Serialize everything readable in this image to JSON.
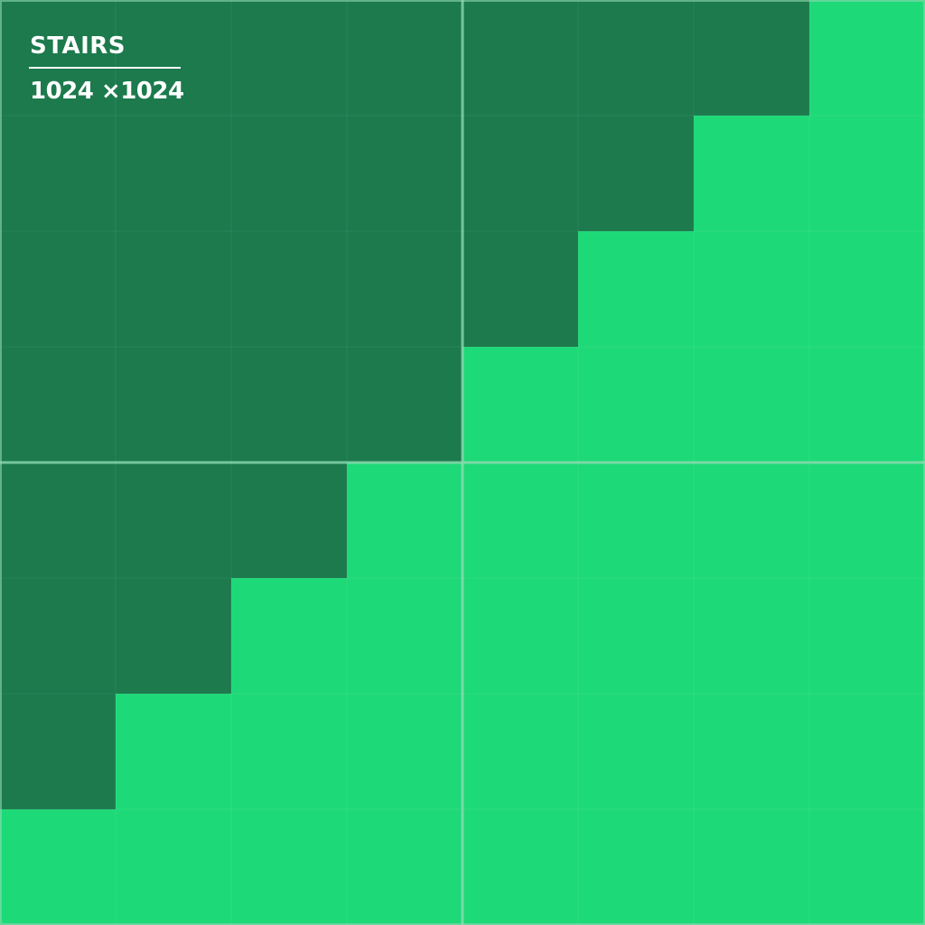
{
  "title": "STAIRS",
  "size_label": "1024 ×1024",
  "grid": {
    "columns": 8,
    "rows": 8
  },
  "colors": {
    "upper_region": "#1c7a4d",
    "lower_region": "#1ed978",
    "stair_line": "#ffffff",
    "center_axis": "#8fd9b0"
  }
}
